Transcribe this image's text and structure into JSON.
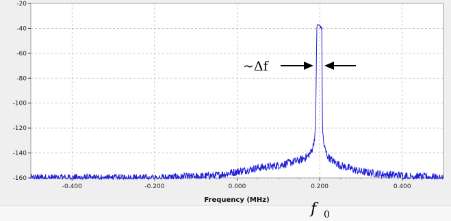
{
  "chart_data": {
    "type": "line",
    "xlabel": "Frequency (MHz)",
    "ylabel": "",
    "xlim": [
      -0.5,
      0.5
    ],
    "ylim": [
      -160,
      -20
    ],
    "x_ticks": [
      -0.4,
      -0.2,
      0.0,
      0.2,
      0.4
    ],
    "x_tick_labels": [
      "-0.400",
      "-0.200",
      "0.000",
      "0.200",
      "0.400"
    ],
    "y_ticks": [
      -20,
      -40,
      -60,
      -80,
      -100,
      -120,
      -140,
      -160
    ],
    "y_tick_labels": [
      "-20",
      "-40",
      "-60",
      "-80",
      "-100",
      "-120",
      "-140",
      "-160"
    ],
    "grid": true,
    "series": [
      {
        "color": "#1f1fd6",
        "x": [
          -0.5,
          -0.4,
          -0.3,
          -0.2,
          -0.1,
          -0.05,
          0.0,
          0.05,
          0.1,
          0.15,
          0.17,
          0.18,
          0.185,
          0.19,
          0.193,
          0.195,
          0.2,
          0.205,
          0.207,
          0.21,
          0.215,
          0.22,
          0.23,
          0.25,
          0.3,
          0.35,
          0.4,
          0.45,
          0.5
        ],
        "y": [
          -160,
          -160,
          -160,
          -160,
          -159,
          -158,
          -155,
          -152,
          -150,
          -146,
          -143,
          -139,
          -133,
          -122,
          -40,
          -37,
          -38,
          -40,
          -122,
          -133,
          -139,
          -143,
          -146,
          -150,
          -155,
          -157,
          -158,
          -159,
          -160
        ]
      }
    ],
    "annotations": {
      "bandwidth_label": "~Δf",
      "center_label": "f",
      "center_subscript": "0"
    }
  },
  "colors": {
    "line": "#1f1fd6",
    "grid": "#b8b8b8",
    "plot_bg": "#ffffff",
    "frame_bg": "#efefef"
  }
}
